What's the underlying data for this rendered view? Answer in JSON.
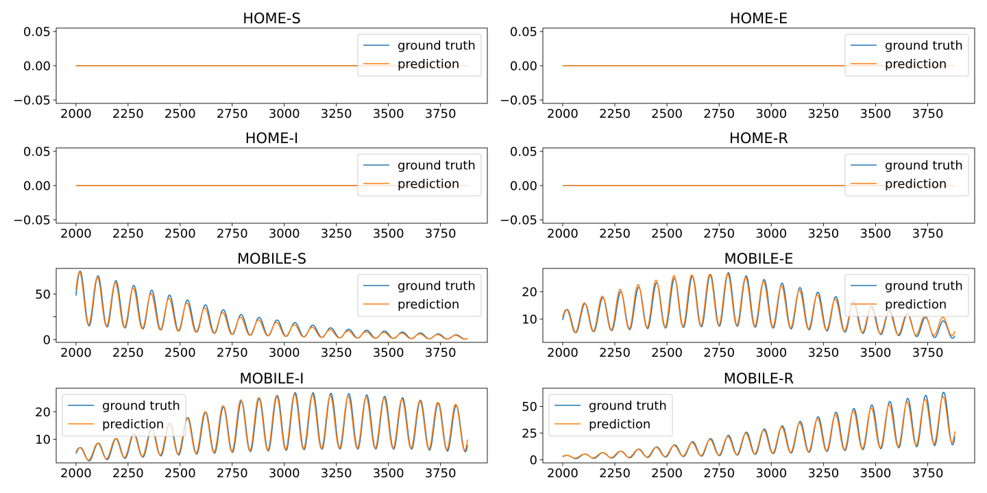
{
  "chart_data": [
    {
      "type": "line",
      "title": "HOME-S",
      "legend": "top-right",
      "xlim": [
        1905,
        3975
      ],
      "ylim": [
        -0.055,
        0.055
      ],
      "xticks": [
        2000,
        2250,
        2500,
        2750,
        3000,
        3250,
        3500,
        3750
      ],
      "yticks": [
        -0.05,
        0.0,
        0.05
      ],
      "ytick_labels": [
        "−0.05",
        "0.00",
        "0.05"
      ],
      "series": [
        {
          "name": "ground truth",
          "color": "#1f77b4",
          "curve": {
            "kind": "flat",
            "value": 0
          }
        },
        {
          "name": "prediction",
          "color": "#ff7f0e",
          "curve": {
            "kind": "flat",
            "value": 0
          }
        }
      ]
    },
    {
      "type": "line",
      "title": "HOME-E",
      "legend": "top-right",
      "xlim": [
        1905,
        3975
      ],
      "ylim": [
        -0.055,
        0.055
      ],
      "xticks": [
        2000,
        2250,
        2500,
        2750,
        3000,
        3250,
        3500,
        3750
      ],
      "yticks": [
        -0.05,
        0.0,
        0.05
      ],
      "ytick_labels": [
        "−0.05",
        "0.00",
        "0.05"
      ],
      "series": [
        {
          "name": "ground truth",
          "color": "#1f77b4",
          "curve": {
            "kind": "flat",
            "value": 0
          }
        },
        {
          "name": "prediction",
          "color": "#ff7f0e",
          "curve": {
            "kind": "flat",
            "value": 0
          }
        }
      ]
    },
    {
      "type": "line",
      "title": "HOME-I",
      "legend": "top-right",
      "xlim": [
        1905,
        3975
      ],
      "ylim": [
        -0.055,
        0.055
      ],
      "xticks": [
        2000,
        2250,
        2500,
        2750,
        3000,
        3250,
        3500,
        3750
      ],
      "yticks": [
        -0.05,
        0.0,
        0.05
      ],
      "ytick_labels": [
        "−0.05",
        "0.00",
        "0.05"
      ],
      "series": [
        {
          "name": "ground truth",
          "color": "#1f77b4",
          "curve": {
            "kind": "flat",
            "value": 0
          }
        },
        {
          "name": "prediction",
          "color": "#ff7f0e",
          "curve": {
            "kind": "flat",
            "value": 0
          }
        }
      ]
    },
    {
      "type": "line",
      "title": "HOME-R",
      "legend": "top-right",
      "xlim": [
        1905,
        3975
      ],
      "ylim": [
        -0.055,
        0.055
      ],
      "xticks": [
        2000,
        2250,
        2500,
        2750,
        3000,
        3250,
        3500,
        3750
      ],
      "yticks": [
        -0.05,
        0.0,
        0.05
      ],
      "ytick_labels": [
        "−0.05",
        "0.00",
        "0.05"
      ],
      "series": [
        {
          "name": "ground truth",
          "color": "#1f77b4",
          "curve": {
            "kind": "flat",
            "value": 0
          }
        },
        {
          "name": "prediction",
          "color": "#ff7f0e",
          "curve": {
            "kind": "flat",
            "value": 0
          }
        }
      ]
    },
    {
      "type": "line",
      "title": "MOBILE-S",
      "legend": "top-right",
      "xlim": [
        1905,
        3975
      ],
      "ylim": [
        -3,
        78
      ],
      "xticks": [
        2000,
        2250,
        2500,
        2750,
        3000,
        3250,
        3500,
        3750
      ],
      "yticks": [
        0,
        25,
        50
      ],
      "ytick_labels": [
        "0",
        "",
        "50"
      ],
      "series": [
        {
          "name": "ground truth",
          "color": "#1f77b4",
          "curve": {
            "kind": "osc",
            "period": 86,
            "peak_x": 2020,
            "peaks": [
              [
                2020,
                75
              ],
              [
                2366,
                54
              ],
              [
                2800,
                27
              ],
              [
                3250,
                12
              ],
              [
                3850,
                5
              ]
            ],
            "troughs": [
              [
                2060,
                15
              ],
              [
                2450,
                10
              ],
              [
                2800,
                5
              ],
              [
                3250,
                2
              ],
              [
                3850,
                0.5
              ]
            ]
          }
        },
        {
          "name": "prediction",
          "color": "#ff7f0e",
          "curve": {
            "kind": "osc",
            "period": 86,
            "peak_x": 2017,
            "peaks": [
              [
                2020,
                74
              ],
              [
                2366,
                50
              ],
              [
                2800,
                24
              ],
              [
                3250,
                10
              ],
              [
                3850,
                4.5
              ]
            ],
            "troughs": [
              [
                2060,
                16
              ],
              [
                2450,
                10
              ],
              [
                2800,
                5
              ],
              [
                3250,
                2
              ],
              [
                3850,
                0.5
              ]
            ]
          }
        }
      ]
    },
    {
      "type": "line",
      "title": "MOBILE-E",
      "legend": "top-right",
      "xlim": [
        1905,
        3975
      ],
      "ylim": [
        1.5,
        28.5
      ],
      "xticks": [
        2000,
        2250,
        2500,
        2750,
        3000,
        3250,
        3500,
        3750
      ],
      "yticks": [
        10,
        20
      ],
      "ytick_labels": [
        "10",
        "20"
      ],
      "series": [
        {
          "name": "ground truth",
          "color": "#1f77b4",
          "curve": {
            "kind": "osc",
            "period": 86,
            "peak_x": 2020,
            "peaks": [
              [
                2020,
                13.5
              ],
              [
                2280,
                20
              ],
              [
                2540,
                25
              ],
              [
                2800,
                27
              ],
              [
                3060,
                23
              ],
              [
                3320,
                18
              ],
              [
                3580,
                13
              ],
              [
                3850,
                9
              ]
            ],
            "troughs": [
              [
                2060,
                5
              ],
              [
                2400,
                6.5
              ],
              [
                2800,
                7.5
              ],
              [
                3200,
                6
              ],
              [
                3600,
                4
              ],
              [
                3850,
                3
              ]
            ]
          }
        },
        {
          "name": "prediction",
          "color": "#ff7f0e",
          "curve": {
            "kind": "osc",
            "period": 86,
            "peak_x": 2017,
            "peaks": [
              [
                2020,
                13.5
              ],
              [
                2280,
                21
              ],
              [
                2540,
                26
              ],
              [
                2800,
                26.5
              ],
              [
                3060,
                22
              ],
              [
                3320,
                17
              ],
              [
                3580,
                12.5
              ],
              [
                3850,
                10.5
              ]
            ],
            "troughs": [
              [
                2060,
                5
              ],
              [
                2400,
                6.8
              ],
              [
                2800,
                7.8
              ],
              [
                3200,
                6.3
              ],
              [
                3600,
                4.3
              ],
              [
                3850,
                4
              ]
            ]
          }
        }
      ]
    },
    {
      "type": "line",
      "title": "MOBILE-I",
      "legend": "top-left",
      "xlim": [
        1905,
        3975
      ],
      "ylim": [
        1.5,
        28.5
      ],
      "xticks": [
        2000,
        2250,
        2500,
        2750,
        3000,
        3250,
        3500,
        3750
      ],
      "yticks": [
        10,
        20
      ],
      "ytick_labels": [
        "10",
        "20"
      ],
      "series": [
        {
          "name": "ground truth",
          "color": "#1f77b4",
          "curve": {
            "kind": "osc",
            "period": 86,
            "peak_x": 2020,
            "peaks": [
              [
                2020,
                7
              ],
              [
                2280,
                12
              ],
              [
                2540,
                18
              ],
              [
                2800,
                24
              ],
              [
                3060,
                27
              ],
              [
                3320,
                26.5
              ],
              [
                3580,
                25
              ],
              [
                3850,
                22
              ]
            ],
            "troughs": [
              [
                2060,
                2.2
              ],
              [
                2400,
                4
              ],
              [
                2800,
                5.5
              ],
              [
                3200,
                6.5
              ],
              [
                3600,
                6.5
              ],
              [
                3850,
                5.5
              ]
            ]
          }
        },
        {
          "name": "prediction",
          "color": "#ff7f0e",
          "curve": {
            "kind": "osc",
            "period": 86,
            "peak_x": 2017,
            "peaks": [
              [
                2020,
                7
              ],
              [
                2280,
                12
              ],
              [
                2540,
                18
              ],
              [
                2800,
                24.5
              ],
              [
                3060,
                26.5
              ],
              [
                3320,
                25.5
              ],
              [
                3580,
                24.5
              ],
              [
                3850,
                22.5
              ]
            ],
            "troughs": [
              [
                2060,
                2.5
              ],
              [
                2400,
                4.3
              ],
              [
                2800,
                5.8
              ],
              [
                3200,
                6.8
              ],
              [
                3600,
                6.8
              ],
              [
                3850,
                6
              ]
            ]
          }
        }
      ]
    },
    {
      "type": "line",
      "title": "MOBILE-R",
      "legend": "top-left",
      "xlim": [
        1905,
        3975
      ],
      "ylim": [
        -3,
        67
      ],
      "xticks": [
        2000,
        2250,
        2500,
        2750,
        3000,
        3250,
        3500,
        3750
      ],
      "yticks": [
        0,
        25,
        50
      ],
      "ytick_labels": [
        "0",
        "25",
        "50"
      ],
      "series": [
        {
          "name": "ground truth",
          "color": "#1f77b4",
          "curve": {
            "kind": "osc",
            "period": 86,
            "peak_x": 2020,
            "peaks": [
              [
                2020,
                4
              ],
              [
                2280,
                8
              ],
              [
                2540,
                14
              ],
              [
                2800,
                23
              ],
              [
                3060,
                32
              ],
              [
                3320,
                45
              ],
              [
                3580,
                55
              ],
              [
                3850,
                64
              ]
            ],
            "troughs": [
              [
                2060,
                1
              ],
              [
                2400,
                2
              ],
              [
                2800,
                4
              ],
              [
                3200,
                7
              ],
              [
                3600,
                11
              ],
              [
                3850,
                14
              ]
            ]
          }
        },
        {
          "name": "prediction",
          "color": "#ff7f0e",
          "curve": {
            "kind": "osc",
            "period": 86,
            "peak_x": 2017,
            "peaks": [
              [
                2020,
                4
              ],
              [
                2280,
                8
              ],
              [
                2540,
                13.5
              ],
              [
                2800,
                22
              ],
              [
                3060,
                31
              ],
              [
                3320,
                43
              ],
              [
                3580,
                52
              ],
              [
                3850,
                60
              ]
            ],
            "troughs": [
              [
                2060,
                1.5
              ],
              [
                2400,
                2.5
              ],
              [
                2800,
                4.5
              ],
              [
                3200,
                7.5
              ],
              [
                3600,
                12
              ],
              [
                3850,
                16
              ]
            ]
          }
        }
      ]
    }
  ]
}
